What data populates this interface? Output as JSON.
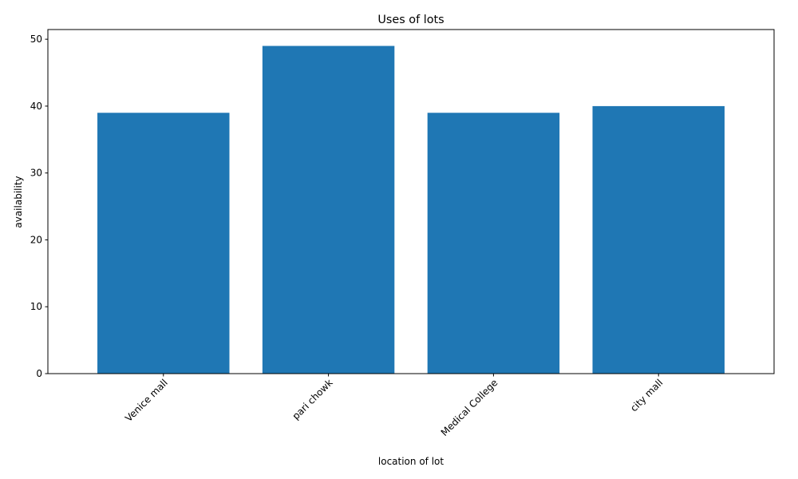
{
  "chart_data": {
    "type": "bar",
    "title": "Uses of lots",
    "xlabel": "location of lot",
    "ylabel": "availability",
    "categories": [
      "Venice mall",
      "pari chowk",
      "Medical College",
      "city mall"
    ],
    "values": [
      39,
      49,
      39,
      40
    ],
    "ylim": [
      0,
      51.45
    ],
    "yticks": [
      0,
      10,
      20,
      30,
      40,
      50
    ],
    "grid": false,
    "legend": "none",
    "bar_color": "#1f77b4",
    "xtick_rotation_deg": 45
  }
}
